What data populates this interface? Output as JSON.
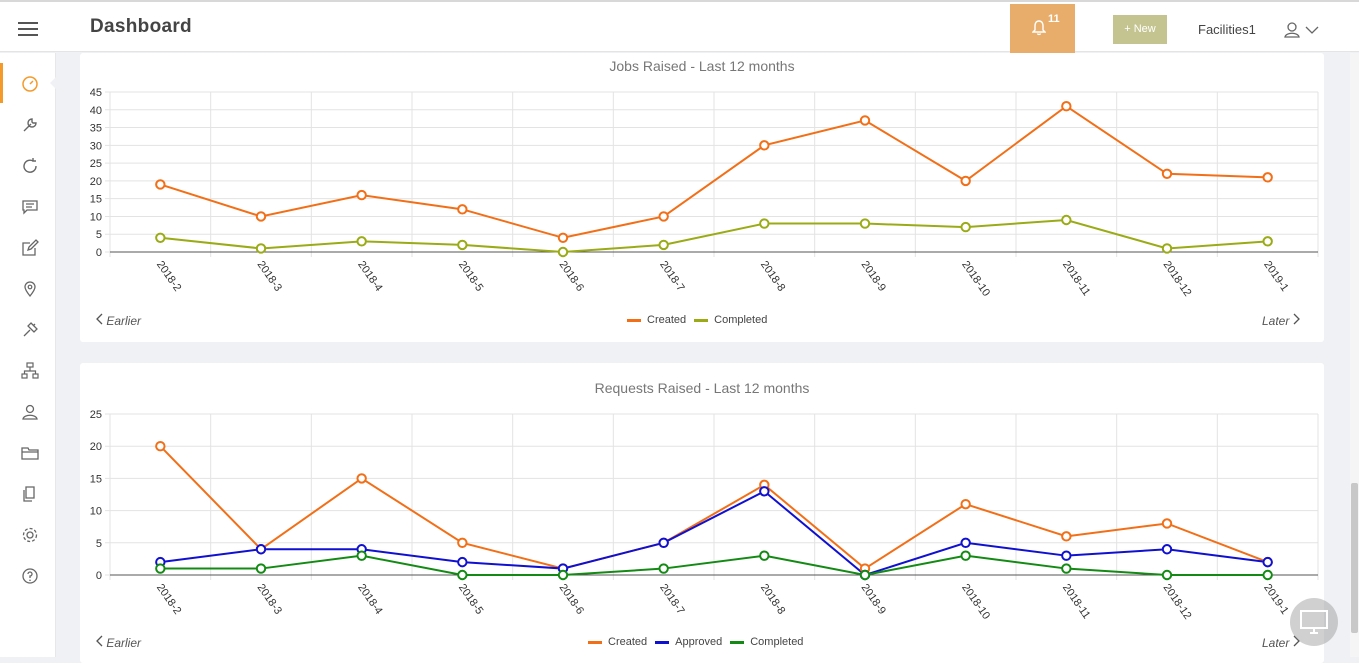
{
  "header": {
    "title": "Dashboard",
    "notification_count": "11",
    "new_button_label": "+ New",
    "user_name": "Facilities1"
  },
  "sidebar": {
    "icons": [
      "dashboard-icon",
      "wrench-icon",
      "refresh-icon",
      "chat-icon",
      "edit-icon",
      "location-icon",
      "tools-icon",
      "hierarchy-icon",
      "contacts-icon",
      "folder-icon",
      "documents-icon",
      "settings-icon",
      "help-icon"
    ]
  },
  "colors": {
    "accent": "#f39a2a",
    "bell_bg": "#e8ad6a",
    "new_btn_bg": "#c4c490",
    "created": "#f26f17",
    "completed_jobs": "#9aab16",
    "approved": "#1010d0",
    "completed_requests": "#138a13"
  },
  "nav": {
    "earlier": "Earlier",
    "later": "Later"
  },
  "chart_data": [
    {
      "type": "line",
      "title": "Jobs Raised - Last 12 months",
      "x": [
        "2018-2",
        "2018-3",
        "2018-4",
        "2018-5",
        "2018-6",
        "2018-7",
        "2018-8",
        "2018-9",
        "2018-10",
        "2018-11",
        "2018-12",
        "2019-1"
      ],
      "ylim": [
        0,
        45
      ],
      "yticks": [
        0,
        5,
        10,
        15,
        20,
        25,
        30,
        35,
        40,
        45
      ],
      "grid": true,
      "legend": "bottom-center",
      "series": [
        {
          "name": "Created",
          "color": "#f26f17",
          "values": [
            19,
            10,
            16,
            12,
            4,
            10,
            30,
            37,
            20,
            41,
            22,
            21
          ]
        },
        {
          "name": "Completed",
          "color": "#9aab16",
          "values": [
            4,
            1,
            3,
            2,
            0,
            2,
            8,
            8,
            7,
            9,
            1,
            3
          ]
        }
      ]
    },
    {
      "type": "line",
      "title": "Requests Raised - Last 12 months",
      "x": [
        "2018-2",
        "2018-3",
        "2018-4",
        "2018-5",
        "2018-6",
        "2018-7",
        "2018-8",
        "2018-9",
        "2018-10",
        "2018-11",
        "2018-12",
        "2019-1"
      ],
      "ylim": [
        0,
        25
      ],
      "yticks": [
        0,
        5,
        10,
        15,
        20,
        25
      ],
      "grid": true,
      "legend": "bottom-center",
      "series": [
        {
          "name": "Created",
          "color": "#f26f17",
          "values": [
            20,
            4,
            15,
            5,
            1,
            5,
            14,
            1,
            11,
            6,
            8,
            2
          ]
        },
        {
          "name": "Approved",
          "color": "#1010d0",
          "values": [
            2,
            4,
            4,
            2,
            1,
            5,
            13,
            0,
            5,
            3,
            4,
            2
          ]
        },
        {
          "name": "Completed",
          "color": "#138a13",
          "values": [
            1,
            1,
            3,
            0,
            0,
            1,
            3,
            0,
            3,
            1,
            0,
            0
          ]
        }
      ]
    }
  ]
}
